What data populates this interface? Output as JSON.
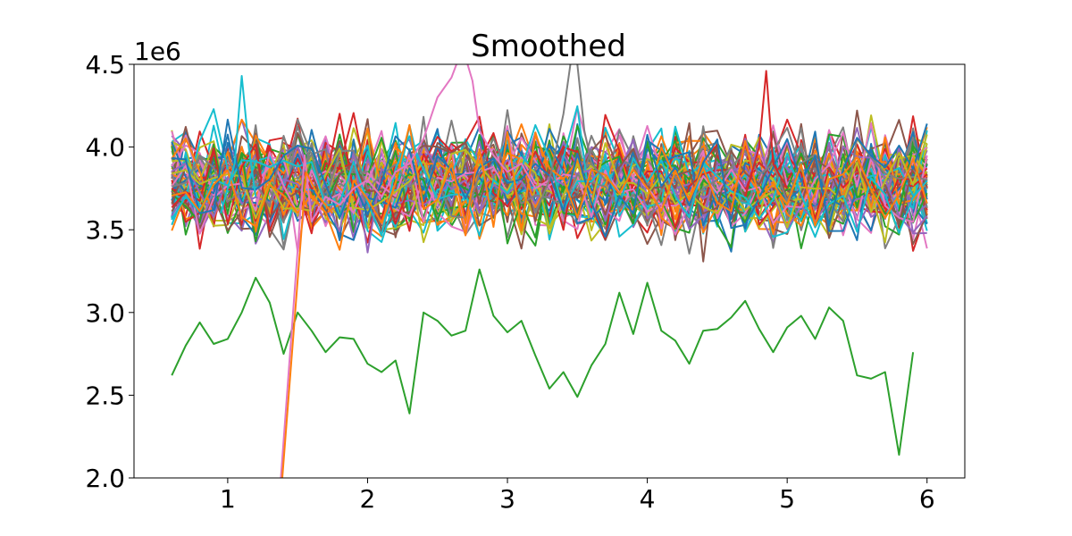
{
  "chart_data": {
    "type": "line",
    "title": "Smoothed",
    "xlabel": "",
    "ylabel": "",
    "y_offset_label": "1e6",
    "xlim": [
      0.33,
      6.27
    ],
    "ylim": [
      2.0,
      4.5
    ],
    "x_ticks": [
      1,
      2,
      3,
      4,
      5,
      6
    ],
    "x_tick_labels": [
      "1",
      "2",
      "3",
      "4",
      "5",
      "6"
    ],
    "y_ticks": [
      2.0,
      2.5,
      3.0,
      3.5,
      4.0,
      4.5
    ],
    "y_tick_labels": [
      "2.0",
      "2.5",
      "3.0",
      "3.5",
      "4.0",
      "4.5"
    ],
    "grid": false,
    "legend": "none",
    "series_count_shown": 72,
    "palette": [
      "#1f77b4",
      "#ff7f0e",
      "#2ca02c",
      "#d62728",
      "#9467bd",
      "#8c564b",
      "#e377c2",
      "#7f7f7f",
      "#bcbd22",
      "#17becf"
    ],
    "x": [
      0.6,
      0.7,
      0.8,
      0.9,
      1.0,
      1.1,
      1.2,
      1.3,
      1.4,
      1.5,
      1.6,
      1.7,
      1.8,
      1.9,
      2.0,
      2.1,
      2.2,
      2.3,
      2.4,
      2.5,
      2.6,
      2.7,
      2.8,
      2.9,
      3.0,
      3.1,
      3.2,
      3.3,
      3.4,
      3.5,
      3.6,
      3.7,
      3.8,
      3.9,
      4.0,
      4.1,
      4.2,
      4.3,
      4.4,
      4.5,
      4.6,
      4.7,
      4.8,
      4.9,
      5.0,
      5.1,
      5.2,
      5.3,
      5.4,
      5.5,
      5.6,
      5.7,
      5.8,
      5.9,
      6.0
    ],
    "band_center": 3.78,
    "band_spread": 0.18,
    "series": [
      {
        "color": "#2ca02c",
        "x": [
          0.6,
          0.7,
          0.8,
          0.9,
          1.0,
          1.1,
          1.2,
          1.3,
          1.4,
          1.5,
          1.6,
          1.7,
          1.8,
          1.9,
          2.0,
          2.1,
          2.2,
          2.3,
          2.4,
          2.5,
          2.6,
          2.7,
          2.8,
          2.9,
          3.0,
          3.1,
          3.2,
          3.3,
          3.4,
          3.5,
          3.6,
          3.7,
          3.8,
          3.9,
          4.0,
          4.1,
          4.2,
          4.3,
          4.4,
          4.5,
          4.6,
          4.7,
          4.8,
          4.9,
          5.0,
          5.1,
          5.2,
          5.3,
          5.4,
          5.5,
          5.6,
          5.7,
          5.8,
          5.9
        ],
        "values": [
          2.62,
          2.8,
          2.94,
          2.81,
          2.84,
          3.0,
          3.21,
          3.06,
          2.75,
          3.0,
          2.89,
          2.76,
          2.85,
          2.84,
          2.69,
          2.64,
          2.71,
          2.39,
          3.0,
          2.95,
          2.86,
          2.89,
          3.26,
          2.98,
          2.88,
          2.95,
          2.74,
          2.54,
          2.64,
          2.49,
          2.68,
          2.81,
          3.12,
          2.87,
          3.18,
          2.89,
          2.83,
          2.69,
          2.89,
          2.9,
          2.97,
          3.07,
          2.9,
          2.76,
          2.91,
          2.98,
          2.84,
          3.03,
          2.95,
          2.62,
          2.6,
          2.64,
          2.14,
          2.76
        ]
      },
      {
        "color": "#e377c2",
        "x": [
          1.38,
          1.55,
          1.6,
          1.7,
          1.8,
          1.9,
          2.0,
          2.1,
          2.2,
          2.3,
          2.4,
          2.5,
          2.6,
          2.68,
          2.75,
          2.8,
          2.9,
          3.0,
          3.1,
          3.2,
          3.3
        ],
        "values": [
          2.0,
          3.95,
          3.55,
          3.7,
          3.65,
          3.75,
          3.8,
          3.7,
          3.85,
          3.9,
          4.05,
          4.3,
          4.42,
          4.6,
          4.4,
          4.1,
          3.95,
          3.85,
          3.9,
          3.75,
          3.8
        ]
      },
      {
        "color": "#ff7f0e",
        "x": [
          1.39,
          1.56,
          1.65,
          1.75
        ],
        "values": [
          2.0,
          3.85,
          3.7,
          3.6
        ]
      },
      {
        "color": "#7f7f7f",
        "x": [
          3.2,
          3.3,
          3.4,
          3.47,
          3.5,
          3.55,
          3.6,
          3.7
        ],
        "values": [
          3.6,
          3.8,
          4.2,
          4.62,
          4.5,
          4.1,
          3.9,
          3.8
        ]
      },
      {
        "color": "#d62728",
        "x": [
          4.7,
          4.8,
          4.85,
          4.9,
          5.0
        ],
        "values": [
          3.7,
          4.0,
          4.46,
          3.9,
          3.75
        ]
      },
      {
        "color": "#17becf",
        "x": [
          0.95,
          1.05,
          1.1,
          1.15,
          1.2
        ],
        "values": [
          3.6,
          3.9,
          4.43,
          4.0,
          3.7
        ]
      }
    ]
  }
}
